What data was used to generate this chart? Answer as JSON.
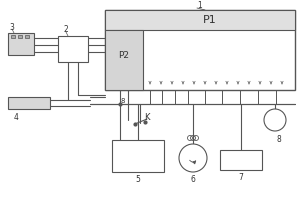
{
  "label_1": "1",
  "label_2": "2",
  "label_3": "3",
  "label_4": "4",
  "label_5": "5",
  "label_6": "6",
  "label_7": "7",
  "label_8": "8",
  "label_K": "K",
  "label_P1": "P1",
  "label_P2": "P2",
  "ec": "#555555",
  "lw": 0.7
}
